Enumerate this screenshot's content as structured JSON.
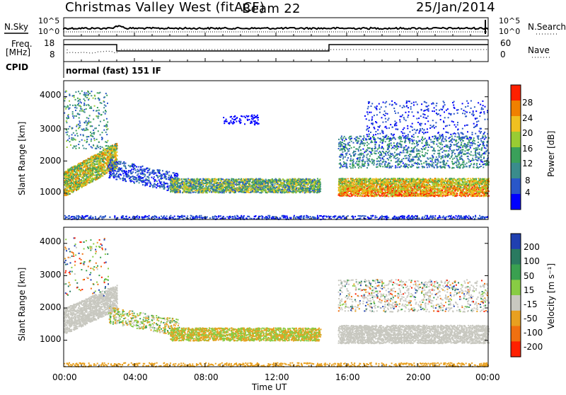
{
  "header": {
    "station": "Christmas Valley West (fitACF)",
    "beam": "Beam 22",
    "date": "25/Jan/2014"
  },
  "panels": {
    "nsky": {
      "left_label": "N.Sky",
      "left_ticks": [
        "10^5",
        "10^0"
      ],
      "right_label": "N.Search",
      "right_ticks": [
        "10^5",
        "10^0"
      ]
    },
    "freq": {
      "left_label_line1": "Freq.",
      "left_label_line2": "[MHz]",
      "left_ticks": [
        "18",
        "8"
      ],
      "right_label": "Nave",
      "right_ticks": [
        "60",
        "0"
      ],
      "cpid_label": "CPID",
      "cpid_text": "normal (fast) 151 IF"
    }
  },
  "chart_data": [
    {
      "type": "heatmap",
      "name": "power",
      "ylabel": "Slant Range [km]",
      "xlabel": "Time UT",
      "xlim": [
        "00:00",
        "24:00"
      ],
      "ylim": [
        180,
        4500
      ],
      "yticks": [
        "1000",
        "2000",
        "3000",
        "4000"
      ],
      "colorbar": {
        "label": "Power [dB]",
        "ticks": [
          "4",
          "8",
          "12",
          "16",
          "20",
          "24",
          "28"
        ],
        "colors": [
          "#0000ff",
          "#2a57c8",
          "#3a8c8c",
          "#3aa05a",
          "#99cc33",
          "#f0c020",
          "#f08000",
          "#ff2000"
        ]
      }
    },
    {
      "type": "heatmap",
      "name": "velocity",
      "ylabel": "Slant Range [km]",
      "xlabel": "Time UT",
      "xlim": [
        "00:00",
        "24:00"
      ],
      "ylim": [
        180,
        4500
      ],
      "yticks": [
        "1000",
        "2000",
        "3000",
        "4000"
      ],
      "colorbar": {
        "label": "Velocity [m s⁻¹]",
        "ticks": [
          "200",
          "100",
          "50",
          "15",
          "-15",
          "-50",
          "-100",
          "-200"
        ],
        "colors": [
          "#2040b0",
          "#2a7a60",
          "#3aa050",
          "#88cc44",
          "#c8c8c0",
          "#e8a020",
          "#f07010",
          "#ff2000"
        ]
      }
    }
  ],
  "axis": {
    "xticks": [
      "00:00",
      "04:00",
      "08:00",
      "12:00",
      "16:00",
      "20:00",
      "00:00"
    ],
    "xlabel": "Time UT"
  },
  "colors": {
    "ground_scatter": "#c8c8c0"
  }
}
